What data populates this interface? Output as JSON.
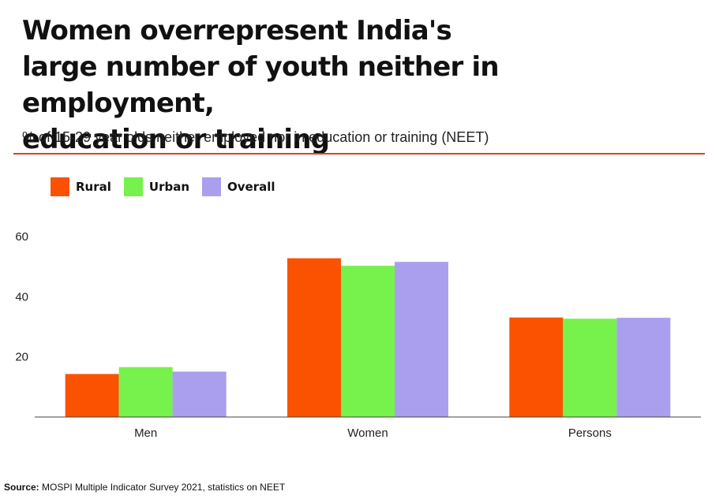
{
  "title_lines": [
    "Women overrepresent India's",
    "large number of youth neither in employment,",
    "education or training"
  ],
  "subtitle": "% of 15-29 year olds neither employed nor in education or training (NEET)",
  "source": {
    "label": "Source:",
    "text": "MOSPI Multiple Indicator Survey 2021, statistics on NEET"
  },
  "colors": {
    "rural": "#fa5200",
    "urban": "#77f14b",
    "overall": "#a99fee",
    "rule": "#d9431e",
    "axis": "#444444"
  },
  "chart_data": {
    "type": "bar",
    "title": "Women overrepresent India's large number of youth neither in employment, education or training",
    "subtitle": "% of 15-29 year olds neither employed nor in education or training (NEET)",
    "categories": [
      "Men",
      "Women",
      "Persons"
    ],
    "series": [
      {
        "name": "Rural",
        "color": "#fa5200",
        "values": [
          14.3,
          52.8,
          33.1
        ]
      },
      {
        "name": "Urban",
        "color": "#77f14b",
        "values": [
          16.6,
          50.3,
          32.7
        ]
      },
      {
        "name": "Overall",
        "color": "#a99fee",
        "values": [
          15.1,
          51.6,
          33.0
        ]
      }
    ],
    "yticks": [
      20,
      40,
      60
    ],
    "ylim": [
      0,
      70
    ],
    "xlabel": "",
    "ylabel": "",
    "grid": false,
    "legend": "top-left"
  }
}
